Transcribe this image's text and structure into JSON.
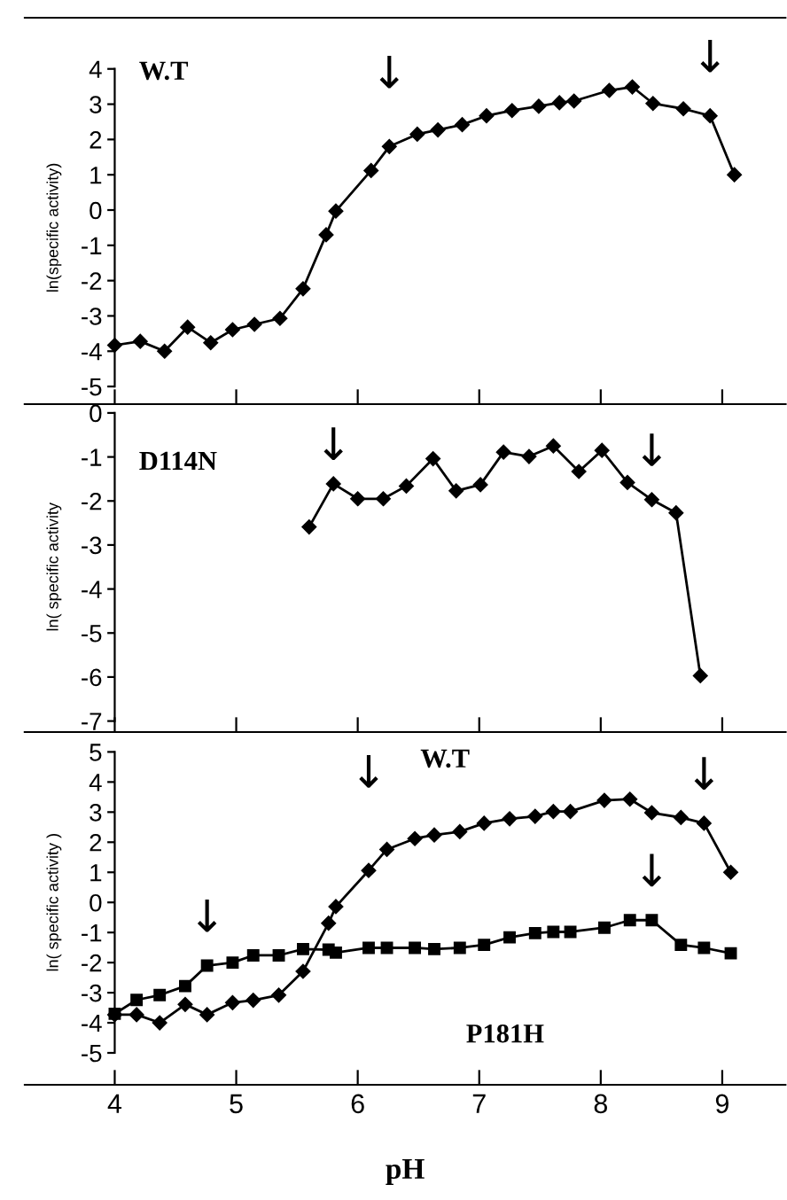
{
  "chart_data": [
    {
      "type": "line",
      "ylabel": "ln(specific activity)",
      "xlim": [
        3.26,
        9.52
      ],
      "ylim": [
        -5.5,
        5.45
      ],
      "yticks": [
        -5,
        -4,
        -3,
        -2,
        -1,
        0,
        1,
        2,
        3,
        4
      ],
      "xticks": [
        4,
        5,
        6,
        7,
        8,
        9
      ],
      "tick_labels": "y",
      "grid": false,
      "legend": false,
      "marker": "diamond",
      "line_style": "solid",
      "series": [
        {
          "name": "W.T",
          "color": "#000000",
          "x": [
            4.0,
            4.21,
            4.41,
            4.6,
            4.79,
            4.97,
            5.15,
            5.36,
            5.55,
            5.74,
            5.82,
            6.11,
            6.26,
            6.49,
            6.66,
            6.86,
            7.06,
            7.27,
            7.49,
            7.66,
            7.78,
            8.07,
            8.26,
            8.43,
            8.68,
            8.9,
            9.1
          ],
          "values": [
            -3.83,
            -3.72,
            -4.0,
            -3.32,
            -3.76,
            -3.39,
            -3.24,
            -3.07,
            -2.23,
            -0.7,
            -0.03,
            1.12,
            1.8,
            2.15,
            2.27,
            2.42,
            2.67,
            2.82,
            2.94,
            3.04,
            3.09,
            3.39,
            3.49,
            3.02,
            2.87,
            2.67,
            1.0
          ]
        }
      ],
      "annotations": [
        {
          "text": "↓",
          "x": 6.26,
          "y": 1.8
        },
        {
          "text": "↓",
          "x": 8.9,
          "y": 2.67
        }
      ]
    },
    {
      "type": "line",
      "ylabel": "ln( specific activity",
      "xlim": [
        3.26,
        9.52
      ],
      "ylim": [
        -7.25,
        0.2
      ],
      "yticks": [
        -7,
        -6,
        -5,
        -4,
        -3,
        -2,
        -1,
        0
      ],
      "xticks": [
        4,
        5,
        6,
        7,
        8,
        9
      ],
      "tick_labels": "y",
      "grid": false,
      "legend": false,
      "marker": "diamond",
      "line_style": "solid",
      "series": [
        {
          "name": "D114N",
          "color": "#000000",
          "x": [
            5.6,
            5.8,
            6.0,
            6.21,
            6.4,
            6.62,
            6.81,
            7.01,
            7.2,
            7.41,
            7.61,
            7.82,
            8.01,
            8.22,
            8.42,
            8.62,
            8.82
          ],
          "values": [
            -2.59,
            -1.61,
            -1.95,
            -1.95,
            -1.66,
            -1.04,
            -1.77,
            -1.63,
            -0.89,
            -0.99,
            -0.75,
            -1.33,
            -0.85,
            -1.58,
            -1.97,
            -2.27,
            -5.97
          ]
        }
      ],
      "annotations": [
        {
          "text": "↓",
          "x": 5.8,
          "y": -1.61
        },
        {
          "text": "↓",
          "x": 8.42,
          "y": -1.97
        }
      ]
    },
    {
      "type": "line",
      "xlabel": "pH",
      "ylabel": "ln( specific activity )",
      "xlim": [
        3.26,
        9.52
      ],
      "ylim": [
        -6.06,
        5.66
      ],
      "yticks": [
        -5,
        -4,
        -3,
        -2,
        -1,
        0,
        1,
        2,
        3,
        4,
        5
      ],
      "xticks": [
        4,
        5,
        6,
        7,
        8,
        9
      ],
      "grid": false,
      "legend": false,
      "line_style": "solid",
      "series": [
        {
          "name": "W.T",
          "color": "#000000",
          "marker": "diamond",
          "x": [
            4.0,
            4.18,
            4.37,
            4.58,
            4.76,
            4.97,
            5.14,
            5.35,
            5.55,
            5.76,
            5.82,
            6.09,
            6.24,
            6.47,
            6.63,
            6.84,
            7.04,
            7.25,
            7.46,
            7.61,
            7.75,
            8.03,
            8.24,
            8.42,
            8.66,
            8.85,
            9.07
          ],
          "values": [
            -3.73,
            -3.73,
            -4.0,
            -3.39,
            -3.73,
            -3.33,
            -3.25,
            -3.08,
            -2.29,
            -0.69,
            -0.14,
            1.06,
            1.76,
            2.12,
            2.24,
            2.35,
            2.63,
            2.78,
            2.86,
            3.02,
            3.02,
            3.39,
            3.43,
            2.98,
            2.82,
            2.63,
            1.0
          ]
        },
        {
          "name": "P181H",
          "color": "#000000",
          "marker": "square",
          "x": [
            4.0,
            4.18,
            4.37,
            4.58,
            4.76,
            4.97,
            5.14,
            5.35,
            5.55,
            5.76,
            5.82,
            6.09,
            6.24,
            6.47,
            6.63,
            6.84,
            7.04,
            7.25,
            7.46,
            7.61,
            7.75,
            8.03,
            8.24,
            8.42,
            8.66,
            8.85,
            9.07
          ],
          "values": [
            -3.7,
            -3.24,
            -3.08,
            -2.78,
            -2.1,
            -2.0,
            -1.76,
            -1.76,
            -1.55,
            -1.57,
            -1.67,
            -1.51,
            -1.51,
            -1.51,
            -1.55,
            -1.51,
            -1.41,
            -1.16,
            -1.02,
            -0.98,
            -0.98,
            -0.84,
            -0.59,
            -0.59,
            -1.41,
            -1.51,
            -1.69
          ]
        }
      ],
      "annotations": [
        {
          "text": "↓",
          "x": 6.09,
          "y": 1.06
        },
        {
          "text": "↓",
          "x": 8.85,
          "y": 2.63
        },
        {
          "text": "↓",
          "x": 4.76,
          "y": -2.1
        },
        {
          "text": "↓",
          "x": 8.42,
          "y": -0.59
        }
      ]
    }
  ]
}
